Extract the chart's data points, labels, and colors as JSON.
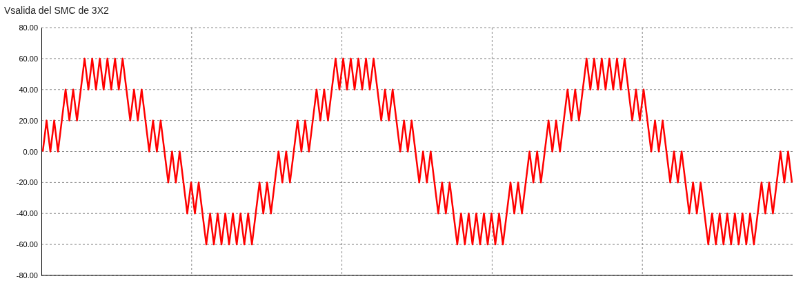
{
  "chart_data": {
    "type": "line",
    "title": "Vsalida del SMC de 3X2",
    "categories": [
      null,
      null,
      null,
      null,
      null,
      null,
      null,
      null,
      null,
      null,
      null,
      null,
      null,
      null,
      null,
      null,
      null,
      null,
      null,
      null,
      null,
      null,
      null,
      null,
      null,
      null,
      null,
      null,
      null,
      null,
      null,
      null,
      null,
      null,
      null,
      null,
      null,
      null,
      null,
      null,
      null,
      null,
      null,
      null,
      null,
      null,
      null,
      null,
      null,
      null,
      null,
      null,
      null,
      null,
      null,
      null,
      null,
      null,
      null,
      null,
      null,
      null,
      null,
      null,
      null,
      null,
      null,
      null,
      null,
      null,
      null,
      null,
      null,
      null,
      null,
      null,
      null,
      null,
      null,
      null,
      null,
      null,
      null,
      null,
      null,
      null,
      null,
      null,
      null,
      null,
      null,
      null,
      null,
      null,
      null,
      null,
      null,
      null,
      null,
      null,
      null,
      null,
      null,
      null,
      null,
      null,
      null,
      null,
      null,
      null,
      null,
      null,
      null,
      null,
      null,
      null,
      null,
      null,
      null,
      null,
      null,
      null,
      null,
      null,
      null,
      null,
      null,
      null,
      null,
      null,
      null,
      null,
      null,
      null,
      null,
      null,
      null,
      null,
      null,
      null,
      null,
      null,
      null,
      null,
      null,
      null,
      null,
      null,
      null,
      null,
      null,
      null,
      null,
      null,
      null,
      null,
      null,
      null,
      null,
      null,
      null,
      null,
      null,
      null,
      null,
      null,
      null,
      null,
      null,
      null,
      null,
      null,
      null,
      null,
      null,
      null,
      null,
      null,
      null,
      null,
      null,
      null,
      null,
      null,
      null,
      null,
      null,
      null,
      null,
      null,
      null,
      null,
      null,
      null,
      null,
      null,
      null,
      null
    ],
    "ylim": [
      -80,
      80
    ],
    "yticks": [
      {
        "value": -80,
        "label": "-80.00"
      },
      {
        "value": -60,
        "label": "-60.00"
      },
      {
        "value": -40,
        "label": "-40.00"
      },
      {
        "value": -20,
        "label": "-20.00"
      },
      {
        "value": 0,
        "label": "0.00"
      },
      {
        "value": 20,
        "label": "20.00"
      },
      {
        "value": 40,
        "label": "40.00"
      },
      {
        "value": 60,
        "label": "60.00"
      },
      {
        "value": 80,
        "label": "80.00"
      }
    ],
    "grid": true,
    "line_style": "solid",
    "series": [
      {
        "color": "#ff0000",
        "values": [
          0,
          20,
          0,
          20,
          0,
          20,
          40,
          20,
          40,
          20,
          40,
          60,
          40,
          60,
          40,
          60,
          40,
          60,
          40,
          60,
          40,
          60,
          40,
          20,
          40,
          20,
          40,
          20,
          0,
          20,
          0,
          20,
          0,
          -20,
          0,
          -20,
          0,
          -20,
          -40,
          -20,
          -40,
          -20,
          -40,
          -60,
          -40,
          -60,
          -40,
          -60,
          -40,
          -60,
          -40,
          -60,
          -40,
          -60,
          -40,
          -60,
          -40,
          -20,
          -40,
          -20,
          -40,
          -20,
          0,
          -20,
          0,
          -20,
          0,
          20,
          0,
          20,
          0,
          20,
          40,
          20,
          40,
          20,
          40,
          60,
          40,
          60,
          40,
          60,
          40,
          60,
          40,
          60,
          40,
          60,
          40,
          20,
          40,
          20,
          40,
          20,
          0,
          20,
          0,
          20,
          0,
          -20,
          0,
          -20,
          0,
          -20,
          -40,
          -20,
          -40,
          -20,
          -40,
          -60,
          -40,
          -60,
          -40,
          -60,
          -40,
          -60,
          -40,
          -60,
          -40,
          -60,
          -40,
          -60,
          -40,
          -20,
          -40,
          -20,
          -40,
          -20,
          0,
          -20,
          0,
          -20,
          0,
          20,
          0,
          20,
          0,
          20,
          40,
          20,
          40,
          20,
          40,
          60,
          40,
          60,
          40,
          60,
          40,
          60,
          40,
          60,
          40,
          60,
          40,
          20,
          40,
          20,
          40,
          20,
          0,
          20,
          0,
          20,
          0,
          -20,
          0,
          -20,
          0,
          -20,
          -40,
          -20,
          -40,
          -20,
          -40,
          -60,
          -40,
          -60,
          -40,
          -60,
          -40,
          -60,
          -40,
          -60,
          -40,
          -60,
          -40,
          -60,
          -40,
          -20,
          -40,
          -20,
          -40,
          -20,
          0,
          -20,
          0,
          -20
        ]
      }
    ]
  }
}
